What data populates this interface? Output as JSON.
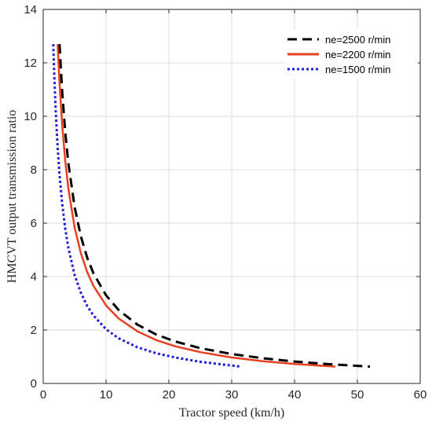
{
  "chart_data": {
    "type": "line",
    "title": "",
    "xlabel": "Tractor speed (km/h)",
    "ylabel": "HMCVT output transmission ratio",
    "xlim": [
      0,
      60
    ],
    "ylim": [
      0,
      14
    ],
    "xticks": [
      "0",
      "10",
      "20",
      "30",
      "40",
      "50",
      "60"
    ],
    "yticks": [
      "0",
      "2",
      "4",
      "6",
      "8",
      "10",
      "12",
      "14"
    ],
    "grid": true,
    "legend_position": "top-right",
    "series": [
      {
        "name": "ne=2500 r/min",
        "color": "#000000",
        "style": "dashed",
        "x": [
          2.6,
          3,
          3.5,
          4,
          5,
          6,
          7,
          8,
          10,
          12,
          15,
          18,
          21,
          25,
          30,
          35,
          40,
          45,
          52
        ],
        "y": [
          12.7,
          11.0,
          9.43,
          8.25,
          6.6,
          5.5,
          4.71,
          4.12,
          3.3,
          2.75,
          2.2,
          1.83,
          1.57,
          1.32,
          1.1,
          0.94,
          0.82,
          0.73,
          0.63
        ]
      },
      {
        "name": "ne=2200 r/min",
        "color": "#e8411f",
        "style": "solid",
        "x": [
          2.3,
          2.6,
          3,
          3.5,
          4,
          5,
          6,
          7,
          8,
          10,
          12,
          15,
          18,
          21,
          25,
          30,
          35,
          40,
          46.5
        ],
        "y": [
          12.7,
          11.24,
          9.74,
          8.35,
          7.3,
          5.84,
          4.87,
          4.17,
          3.65,
          2.92,
          2.43,
          1.95,
          1.62,
          1.39,
          1.17,
          0.97,
          0.83,
          0.73,
          0.63
        ]
      },
      {
        "name": "ne=1500 r/min",
        "color": "#1f1fd6",
        "style": "dotted",
        "x": [
          1.6,
          1.8,
          2,
          2.3,
          2.6,
          3,
          3.5,
          4,
          5,
          6,
          7,
          8,
          10,
          12,
          15,
          18,
          21,
          25,
          31.5
        ],
        "y": [
          12.7,
          11.29,
          10.16,
          8.83,
          7.82,
          6.77,
          5.81,
          5.08,
          4.06,
          3.39,
          2.9,
          2.54,
          2.03,
          1.69,
          1.35,
          1.13,
          0.97,
          0.81,
          0.63
        ]
      }
    ]
  }
}
